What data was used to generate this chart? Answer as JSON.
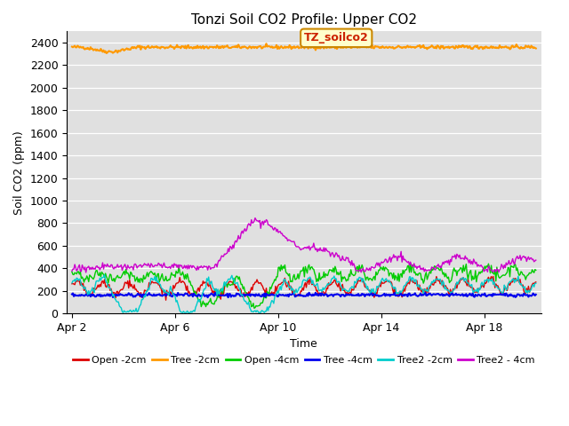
{
  "title": "Tonzi Soil CO2 Profile: Upper CO2",
  "xlabel": "Time",
  "ylabel": "Soil CO2 (ppm)",
  "ylim": [
    0,
    2500
  ],
  "yticks": [
    0,
    200,
    400,
    600,
    800,
    1000,
    1200,
    1400,
    1600,
    1800,
    2000,
    2200,
    2400
  ],
  "background_color": "#e0e0e0",
  "fig_background": "#ffffff",
  "annotation_text": "TZ_soilco2",
  "annotation_box_color": "#ffffcc",
  "annotation_border_color": "#cc8800",
  "annotation_text_color": "#cc2200",
  "series": {
    "Open -2cm": {
      "color": "#dd0000",
      "lw": 1.0
    },
    "Tree -2cm": {
      "color": "#ff9900",
      "lw": 1.5
    },
    "Open -4cm": {
      "color": "#00cc00",
      "lw": 1.0
    },
    "Tree -4cm": {
      "color": "#0000ee",
      "lw": 1.5
    },
    "Tree2 -2cm": {
      "color": "#00cccc",
      "lw": 1.0
    },
    "Tree2 - 4cm": {
      "color": "#cc00cc",
      "lw": 1.0
    }
  },
  "xtick_labels": [
    "Apr 2",
    "Apr 6",
    "Apr 10",
    "Apr 14",
    "Apr 18"
  ],
  "xtick_positions": [
    0,
    4,
    8,
    12,
    16
  ],
  "num_points": 500,
  "date_range_days": 18,
  "seed": 42
}
